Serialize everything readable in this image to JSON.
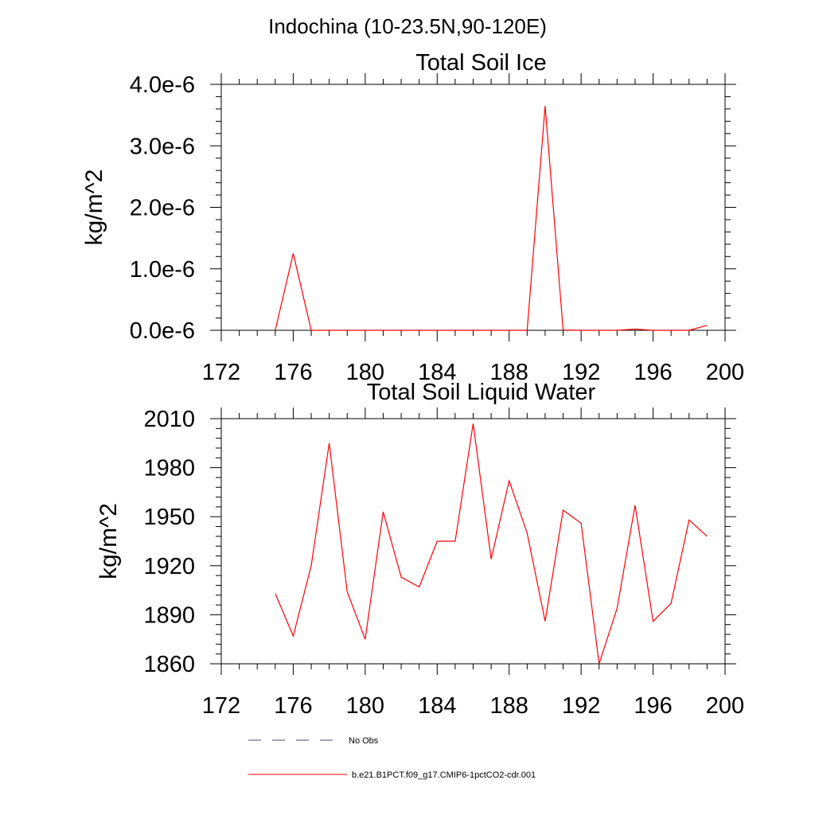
{
  "figure": {
    "title": "Indochina (10-23.5N,90-120E)"
  },
  "chart_data": [
    {
      "type": "line",
      "title": "Total Soil Ice",
      "ylabel": "kg/m^2",
      "xlabel": "",
      "xlim": [
        172,
        200
      ],
      "ylim": [
        0,
        4e-06
      ],
      "xticks": [
        172,
        176,
        180,
        184,
        188,
        192,
        196,
        200
      ],
      "xtick_labels": [
        "172",
        "176",
        "180",
        "184",
        "188",
        "192",
        "196",
        "200"
      ],
      "yticks": [
        0,
        1e-06,
        2e-06,
        3e-06,
        4e-06
      ],
      "ytick_labels": [
        "0.0e-6",
        "1.0e-6",
        "2.0e-6",
        "3.0e-6",
        "4.0e-6"
      ],
      "grid": false,
      "series": [
        {
          "name": "b.e21.B1PCT.f09_g17.CMIP6-1pctCO2-cdr.001",
          "color": "#ff0000",
          "x": [
            175,
            176,
            177,
            178,
            179,
            180,
            181,
            182,
            183,
            184,
            185,
            186,
            187,
            188,
            189,
            190,
            191,
            192,
            193,
            194,
            195,
            196,
            197,
            198,
            199
          ],
          "y": [
            0,
            1.25e-06,
            0,
            0,
            0,
            0,
            0,
            0,
            0,
            0,
            0,
            0,
            0,
            0,
            0,
            3.65e-06,
            5e-09,
            0,
            0,
            0,
            2e-08,
            0,
            0,
            0,
            8e-08
          ]
        }
      ]
    },
    {
      "type": "line",
      "title": "Total Soil Liquid Water",
      "ylabel": "kg/m^2",
      "xlabel": "",
      "xlim": [
        172,
        200
      ],
      "ylim": [
        1860,
        2010
      ],
      "xticks": [
        172,
        176,
        180,
        184,
        188,
        192,
        196,
        200
      ],
      "xtick_labels": [
        "172",
        "176",
        "180",
        "184",
        "188",
        "192",
        "196",
        "200"
      ],
      "yticks": [
        1860,
        1890,
        1920,
        1950,
        1980,
        2010
      ],
      "ytick_labels": [
        "1860",
        "1890",
        "1920",
        "1950",
        "1980",
        "2010"
      ],
      "grid": false,
      "series": [
        {
          "name": "b.e21.B1PCT.f09_g17.CMIP6-1pctCO2-cdr.001",
          "color": "#ff0000",
          "x": [
            175,
            176,
            177,
            178,
            179,
            180,
            181,
            182,
            183,
            184,
            185,
            186,
            187,
            188,
            189,
            190,
            191,
            192,
            193,
            194,
            195,
            196,
            197,
            198,
            199
          ],
          "y": [
            1903,
            1877,
            1920,
            1995,
            1904,
            1875,
            1953,
            1913,
            1907,
            1935,
            1935,
            2007,
            1924,
            1972,
            1940,
            1886,
            1954,
            1946,
            1860,
            1894,
            1957,
            1886,
            1897,
            1948,
            1938
          ]
        }
      ]
    }
  ],
  "legend": {
    "placement": "bottom",
    "items": [
      {
        "label": "No Obs",
        "style": "dashed",
        "color": "#4a4a6a"
      },
      {
        "label": "b.e21.B1PCT.f09_g17.CMIP6-1pctCO2-cdr.001",
        "style": "solid",
        "color": "#ff0000"
      }
    ]
  }
}
